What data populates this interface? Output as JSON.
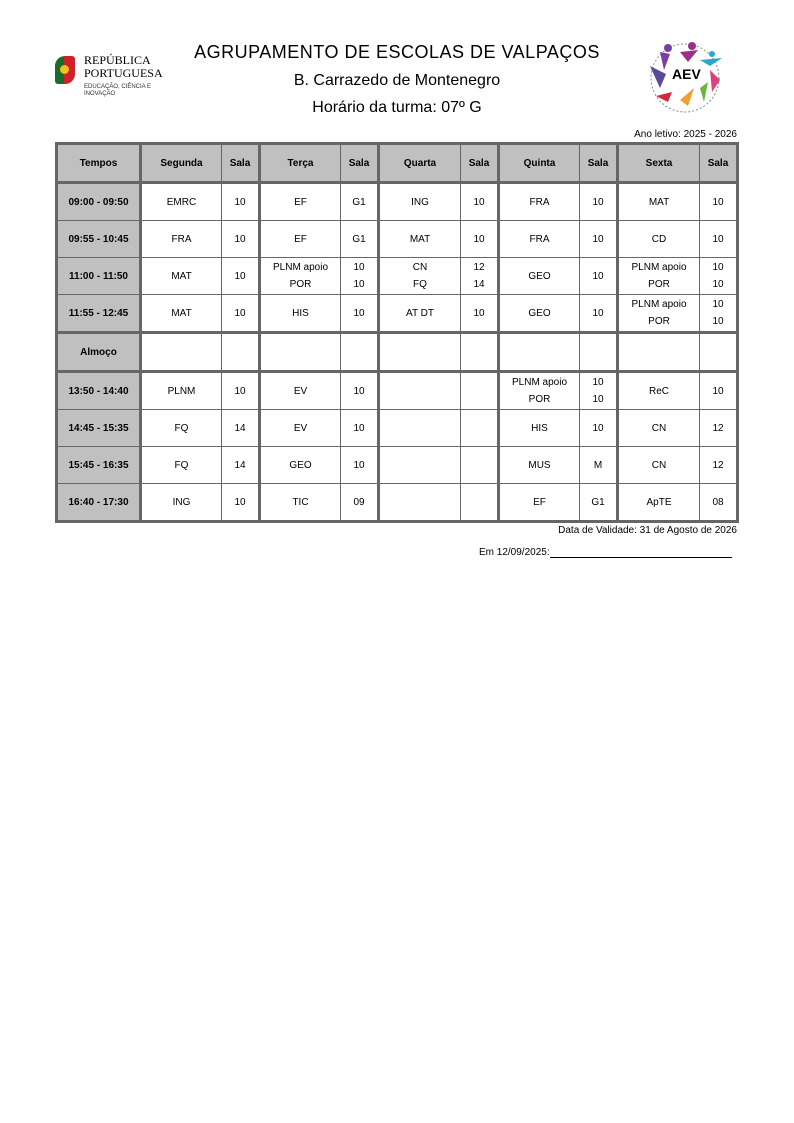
{
  "header": {
    "logo_left": "REPÚBLICA PORTUGUESA",
    "logo_left_sub": "EDUCAÇÃO, CIÊNCIA E INOVAÇÃO",
    "logo_right": "AEV",
    "title": "AGRUPAMENTO DE ESCOLAS DE VALPAÇOS",
    "school": "B. Carrazedo de Montenegro",
    "class": "Horário da turma:  07º G",
    "year": "Ano letivo: 2025 - 2026"
  },
  "table": {
    "columns": [
      "Tempos",
      "Segunda",
      "Sala",
      "Terça",
      "Sala",
      "Quarta",
      "Sala",
      "Quinta",
      "Sala",
      "Sexta",
      "Sala"
    ],
    "rows": [
      {
        "time": "09:00 - 09:50",
        "days": [
          {
            "s": [
              "EMRC"
            ],
            "r": [
              "10"
            ]
          },
          {
            "s": [
              "EF"
            ],
            "r": [
              "G1"
            ]
          },
          {
            "s": [
              "ING"
            ],
            "r": [
              "10"
            ]
          },
          {
            "s": [
              "FRA"
            ],
            "r": [
              "10"
            ]
          },
          {
            "s": [
              "MAT"
            ],
            "r": [
              "10"
            ]
          }
        ]
      },
      {
        "time": "09:55 - 10:45",
        "days": [
          {
            "s": [
              "FRA"
            ],
            "r": [
              "10"
            ]
          },
          {
            "s": [
              "EF"
            ],
            "r": [
              "G1"
            ]
          },
          {
            "s": [
              "MAT"
            ],
            "r": [
              "10"
            ]
          },
          {
            "s": [
              "FRA"
            ],
            "r": [
              "10"
            ]
          },
          {
            "s": [
              "CD"
            ],
            "r": [
              "10"
            ]
          }
        ]
      },
      {
        "time": "11:00 - 11:50",
        "days": [
          {
            "s": [
              "MAT"
            ],
            "r": [
              "10"
            ]
          },
          {
            "s": [
              "PLNM apoio",
              "POR"
            ],
            "r": [
              "10",
              "10"
            ]
          },
          {
            "s": [
              "CN",
              "FQ"
            ],
            "r": [
              "12",
              "14"
            ]
          },
          {
            "s": [
              "GEO"
            ],
            "r": [
              "10"
            ]
          },
          {
            "s": [
              "PLNM apoio",
              "POR"
            ],
            "r": [
              "10",
              "10"
            ]
          }
        ]
      },
      {
        "time": "11:55 - 12:45",
        "days": [
          {
            "s": [
              "MAT"
            ],
            "r": [
              "10"
            ]
          },
          {
            "s": [
              "HIS"
            ],
            "r": [
              "10"
            ]
          },
          {
            "s": [
              "AT DT"
            ],
            "r": [
              "10"
            ]
          },
          {
            "s": [
              "GEO"
            ],
            "r": [
              "10"
            ]
          },
          {
            "s": [
              "PLNM apoio",
              "POR"
            ],
            "r": [
              "10",
              "10"
            ]
          }
        ]
      },
      {
        "time": "Almoço",
        "days": [
          {
            "s": [],
            "r": []
          },
          {
            "s": [],
            "r": []
          },
          {
            "s": [],
            "r": []
          },
          {
            "s": [],
            "r": []
          },
          {
            "s": [],
            "r": []
          }
        ]
      },
      {
        "time": "13:50 - 14:40",
        "days": [
          {
            "s": [
              "PLNM"
            ],
            "r": [
              "10"
            ]
          },
          {
            "s": [
              "EV"
            ],
            "r": [
              "10"
            ]
          },
          {
            "s": [],
            "r": []
          },
          {
            "s": [
              "PLNM apoio",
              "POR"
            ],
            "r": [
              "10",
              "10"
            ]
          },
          {
            "s": [
              "ReC"
            ],
            "r": [
              "10"
            ]
          }
        ]
      },
      {
        "time": "14:45 - 15:35",
        "days": [
          {
            "s": [
              "FQ"
            ],
            "r": [
              "14"
            ]
          },
          {
            "s": [
              "EV"
            ],
            "r": [
              "10"
            ]
          },
          {
            "s": [],
            "r": []
          },
          {
            "s": [
              "HIS"
            ],
            "r": [
              "10"
            ]
          },
          {
            "s": [
              "CN"
            ],
            "r": [
              "12"
            ]
          }
        ]
      },
      {
        "time": "15:45 - 16:35",
        "days": [
          {
            "s": [
              "FQ"
            ],
            "r": [
              "14"
            ]
          },
          {
            "s": [
              "GEO"
            ],
            "r": [
              "10"
            ]
          },
          {
            "s": [],
            "r": []
          },
          {
            "s": [
              "MUS"
            ],
            "r": [
              "M"
            ]
          },
          {
            "s": [
              "CN"
            ],
            "r": [
              "12"
            ]
          }
        ]
      },
      {
        "time": "16:40 - 17:30",
        "days": [
          {
            "s": [
              "ING"
            ],
            "r": [
              "10"
            ]
          },
          {
            "s": [
              "TIC"
            ],
            "r": [
              "09"
            ]
          },
          {
            "s": [],
            "r": []
          },
          {
            "s": [
              "EF"
            ],
            "r": [
              "G1"
            ]
          },
          {
            "s": [
              "ApTE"
            ],
            "r": [
              "08"
            ]
          }
        ]
      }
    ]
  },
  "footer": {
    "validity": "Data de Validade: 31 de Agosto de 2026",
    "date": "Em 12/09/2025:"
  }
}
